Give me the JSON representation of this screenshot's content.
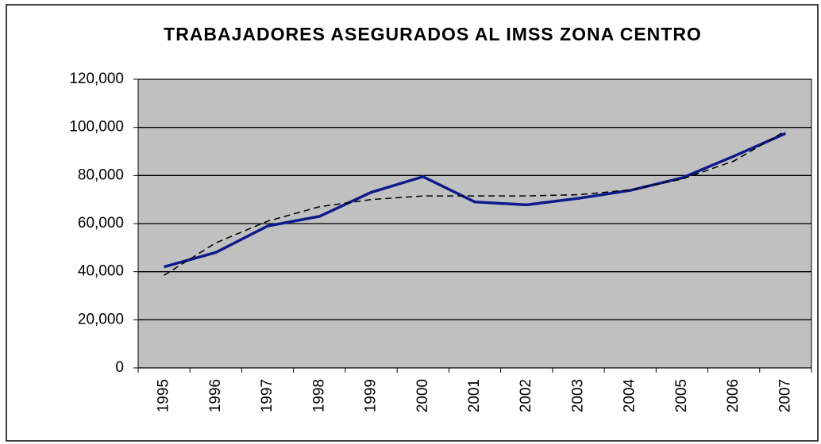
{
  "chart_data": {
    "type": "line",
    "title": "TRABAJADORES ASEGURADOS AL IMSS  ZONA CENTRO",
    "categories": [
      "1995",
      "1996",
      "1997",
      "1998",
      "1999",
      "2000",
      "2001",
      "2002",
      "2003",
      "2004",
      "2005",
      "2006",
      "2007"
    ],
    "series": [
      {
        "color": "#0c1a8c",
        "style": "solid",
        "values": [
          42000,
          48000,
          59000,
          63000,
          73000,
          79500,
          69000,
          67800,
          70500,
          73800,
          79000,
          88000,
          97500
        ]
      },
      {
        "color": "#000000",
        "style": "dashed",
        "values": [
          38500,
          52000,
          61000,
          67000,
          70000,
          71500,
          71500,
          71500,
          72000,
          74000,
          78500,
          86000,
          98500
        ]
      }
    ],
    "ylim": [
      0,
      120000
    ],
    "yticks": [
      0,
      {
        "value": 20000,
        "label": "20,000"
      },
      {
        "value": 40000,
        "label": "40,000"
      },
      {
        "value": 60000,
        "label": "60,000"
      },
      {
        "value": 80000,
        "label": "80,000"
      },
      {
        "value": 100000,
        "label": "100,000"
      },
      {
        "value": 120000,
        "label": "120,000"
      }
    ],
    "grid": true,
    "plot_background": "#c0c0c0"
  }
}
